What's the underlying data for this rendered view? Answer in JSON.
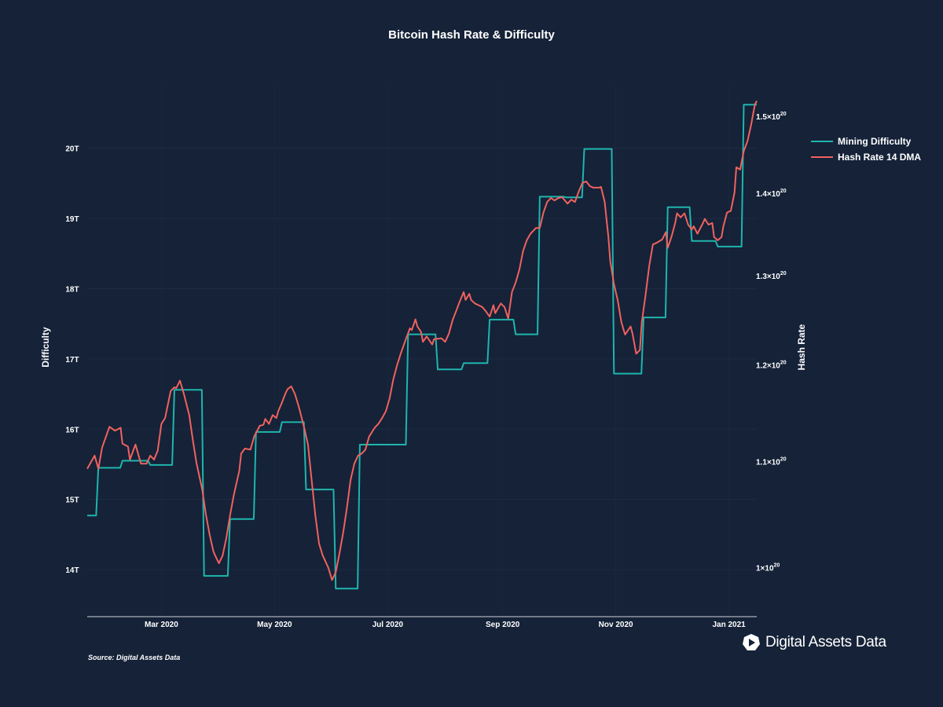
{
  "title": "Bitcoin Hash Rate & Difficulty",
  "source": "Source: Digital Assets Data",
  "logo_text": "Digital Assets Data",
  "colors": {
    "background": "#152238",
    "difficulty": "#1fb5ad",
    "hash_rate": "#f0625f"
  },
  "chart_data": {
    "type": "line",
    "title": "Bitcoin Hash Rate & Difficulty",
    "legend_position": "right",
    "grid": true,
    "x_range": [
      "2020-01-21",
      "2021-01-16"
    ],
    "x_ticks": [
      {
        "date": "2020-03-01",
        "label": "Mar 2020"
      },
      {
        "date": "2020-05-01",
        "label": "May 2020"
      },
      {
        "date": "2020-07-01",
        "label": "Jul 2020"
      },
      {
        "date": "2020-09-01",
        "label": "Sep 2020"
      },
      {
        "date": "2020-11-01",
        "label": "Nov 2020"
      },
      {
        "date": "2021-01-01",
        "label": "Jan 2021"
      }
    ],
    "y_left": {
      "label": "Difficulty",
      "range_T": [
        13.33,
        20.88
      ],
      "ticks": [
        {
          "v": 14,
          "label": "14T"
        },
        {
          "v": 15,
          "label": "15T"
        },
        {
          "v": 16,
          "label": "16T"
        },
        {
          "v": 17,
          "label": "17T"
        },
        {
          "v": 18,
          "label": "18T"
        },
        {
          "v": 19,
          "label": "19T"
        },
        {
          "v": 20,
          "label": "20T"
        }
      ]
    },
    "y_right": {
      "label": "Hash Rate",
      "scale": "log",
      "range": [
        9.57e+19,
        1.541e+20
      ],
      "ticks": [
        {
          "v": 1e+20,
          "mant": "1",
          "exp": "20"
        },
        {
          "v": 1.1e+20,
          "mant": "1.1",
          "exp": "20"
        },
        {
          "v": 1.2e+20,
          "mant": "1.2",
          "exp": "20"
        },
        {
          "v": 1.3e+20,
          "mant": "1.3",
          "exp": "20"
        },
        {
          "v": 1.4e+20,
          "mant": "1.4",
          "exp": "20"
        },
        {
          "v": 1.5e+20,
          "mant": "1.5",
          "exp": "20"
        }
      ]
    },
    "series": [
      {
        "name": "Mining Difficulty",
        "axis": "left",
        "unit": "T",
        "shape": "step",
        "points": [
          [
            "2020-01-21",
            14.77
          ],
          [
            "2020-01-27",
            15.45
          ],
          [
            "2020-02-09",
            15.55
          ],
          [
            "2020-02-24",
            15.49
          ],
          [
            "2020-03-08",
            16.56
          ],
          [
            "2020-03-24",
            13.91
          ],
          [
            "2020-04-07",
            14.72
          ],
          [
            "2020-04-21",
            15.96
          ],
          [
            "2020-05-05",
            16.1
          ],
          [
            "2020-05-18",
            15.14
          ],
          [
            "2020-06-03",
            13.73
          ],
          [
            "2020-06-16",
            15.78
          ],
          [
            "2020-07-12",
            17.35
          ],
          [
            "2020-07-28",
            16.85
          ],
          [
            "2020-08-11",
            16.94
          ],
          [
            "2020-08-25",
            17.56
          ],
          [
            "2020-09-08",
            17.35
          ],
          [
            "2020-09-21",
            19.31
          ],
          [
            "2020-10-05",
            19.3
          ],
          [
            "2020-10-15",
            19.99
          ],
          [
            "2020-10-31",
            16.79
          ],
          [
            "2020-11-16",
            17.59
          ],
          [
            "2020-11-29",
            19.16
          ],
          [
            "2020-12-12",
            18.68
          ],
          [
            "2020-12-26",
            18.6
          ],
          [
            "2021-01-09",
            20.62
          ],
          [
            "2021-01-16",
            20.62
          ]
        ]
      },
      {
        "name": "Hash Rate 14 DMA",
        "axis": "right",
        "unit": "H/s",
        "points": [
          [
            "2020-01-21",
            1.093e+20
          ],
          [
            "2020-01-25",
            1.106e+20
          ],
          [
            "2020-01-27",
            1.093e+20
          ],
          [
            "2020-01-29",
            1.114e+20
          ],
          [
            "2020-02-02",
            1.135e+20
          ],
          [
            "2020-02-05",
            1.131e+20
          ],
          [
            "2020-02-08",
            1.134e+20
          ],
          [
            "2020-02-09",
            1.118e+20
          ],
          [
            "2020-02-12",
            1.115e+20
          ],
          [
            "2020-02-13",
            1.102e+20
          ],
          [
            "2020-02-16",
            1.117e+20
          ],
          [
            "2020-02-19",
            1.098e+20
          ],
          [
            "2020-02-22",
            1.098e+20
          ],
          [
            "2020-02-24",
            1.106e+20
          ],
          [
            "2020-02-26",
            1.102e+20
          ],
          [
            "2020-02-28",
            1.111e+20
          ],
          [
            "2020-03-01",
            1.138e+20
          ],
          [
            "2020-03-03",
            1.144e+20
          ],
          [
            "2020-03-06",
            1.172e+20
          ],
          [
            "2020-03-08",
            1.176e+20
          ],
          [
            "2020-03-09",
            1.175e+20
          ],
          [
            "2020-03-11",
            1.183e+20
          ],
          [
            "2020-03-13",
            1.17e+20
          ],
          [
            "2020-03-16",
            1.147e+20
          ],
          [
            "2020-03-18",
            1.121e+20
          ],
          [
            "2020-03-20",
            1.098e+20
          ],
          [
            "2020-03-23",
            1.073e+20
          ],
          [
            "2020-03-25",
            1.049e+20
          ],
          [
            "2020-03-27",
            1.03e+20
          ],
          [
            "2020-03-29",
            1.015e+20
          ],
          [
            "2020-03-30",
            1.011e+20
          ],
          [
            "2020-04-01",
            1.004e+20
          ],
          [
            "2020-04-03",
            1.011e+20
          ],
          [
            "2020-04-05",
            1.027e+20
          ],
          [
            "2020-04-07",
            1.048e+20
          ],
          [
            "2020-04-09",
            1.067e+20
          ],
          [
            "2020-04-12",
            1.091e+20
          ],
          [
            "2020-04-13",
            1.108e+20
          ],
          [
            "2020-04-15",
            1.113e+20
          ],
          [
            "2020-04-18",
            1.112e+20
          ],
          [
            "2020-04-20",
            1.125e+20
          ],
          [
            "2020-04-23",
            1.136e+20
          ],
          [
            "2020-04-25",
            1.137e+20
          ],
          [
            "2020-04-26",
            1.143e+20
          ],
          [
            "2020-04-28",
            1.138e+20
          ],
          [
            "2020-04-30",
            1.147e+20
          ],
          [
            "2020-05-02",
            1.144e+20
          ],
          [
            "2020-05-03",
            1.151e+20
          ],
          [
            "2020-05-05",
            1.16e+20
          ],
          [
            "2020-05-07",
            1.17e+20
          ],
          [
            "2020-05-08",
            1.174e+20
          ],
          [
            "2020-05-10",
            1.177e+20
          ],
          [
            "2020-05-12",
            1.169e+20
          ],
          [
            "2020-05-14",
            1.156e+20
          ],
          [
            "2020-05-17",
            1.134e+20
          ],
          [
            "2020-05-19",
            1.117e+20
          ],
          [
            "2020-05-21",
            1.082e+20
          ],
          [
            "2020-05-23",
            1.048e+20
          ],
          [
            "2020-05-25",
            1.022e+20
          ],
          [
            "2020-05-27",
            1.011e+20
          ],
          [
            "2020-05-30",
            1e+20
          ],
          [
            "2020-06-01",
            9.89e+19
          ],
          [
            "2020-06-03",
            9.96e+19
          ],
          [
            "2020-06-05",
            1.013e+20
          ],
          [
            "2020-06-07",
            1.032e+20
          ],
          [
            "2020-06-09",
            1.055e+20
          ],
          [
            "2020-06-11",
            1.082e+20
          ],
          [
            "2020-06-13",
            1.098e+20
          ],
          [
            "2020-06-15",
            1.106e+20
          ],
          [
            "2020-06-17",
            1.108e+20
          ],
          [
            "2020-06-19",
            1.112e+20
          ],
          [
            "2020-06-21",
            1.125e+20
          ],
          [
            "2020-06-24",
            1.134e+20
          ],
          [
            "2020-06-26",
            1.138e+20
          ],
          [
            "2020-06-28",
            1.144e+20
          ],
          [
            "2020-06-30",
            1.151e+20
          ],
          [
            "2020-07-02",
            1.164e+20
          ],
          [
            "2020-07-04",
            1.184e+20
          ],
          [
            "2020-07-06",
            1.199e+20
          ],
          [
            "2020-07-08",
            1.212e+20
          ],
          [
            "2020-07-11",
            1.229e+20
          ],
          [
            "2020-07-13",
            1.24e+20
          ],
          [
            "2020-07-14",
            1.238e+20
          ],
          [
            "2020-07-16",
            1.25e+20
          ],
          [
            "2020-07-17",
            1.242e+20
          ],
          [
            "2020-07-19",
            1.236e+20
          ],
          [
            "2020-07-20",
            1.225e+20
          ],
          [
            "2020-07-22",
            1.231e+20
          ],
          [
            "2020-07-25",
            1.222e+20
          ],
          [
            "2020-07-26",
            1.228e+20
          ],
          [
            "2020-07-30",
            1.229e+20
          ],
          [
            "2020-08-01",
            1.225e+20
          ],
          [
            "2020-08-03",
            1.234e+20
          ],
          [
            "2020-08-05",
            1.249e+20
          ],
          [
            "2020-08-07",
            1.26e+20
          ],
          [
            "2020-08-09",
            1.271e+20
          ],
          [
            "2020-08-11",
            1.281e+20
          ],
          [
            "2020-08-12",
            1.272e+20
          ],
          [
            "2020-08-14",
            1.279e+20
          ],
          [
            "2020-08-15",
            1.272e+20
          ],
          [
            "2020-08-17",
            1.268e+20
          ],
          [
            "2020-08-19",
            1.266e+20
          ],
          [
            "2020-08-21",
            1.264e+20
          ],
          [
            "2020-08-23",
            1.259e+20
          ],
          [
            "2020-08-25",
            1.253e+20
          ],
          [
            "2020-08-27",
            1.266e+20
          ],
          [
            "2020-08-28",
            1.257e+20
          ],
          [
            "2020-08-31",
            1.268e+20
          ],
          [
            "2020-09-02",
            1.264e+20
          ],
          [
            "2020-09-04",
            1.251e+20
          ],
          [
            "2020-09-06",
            1.281e+20
          ],
          [
            "2020-09-08",
            1.292e+20
          ],
          [
            "2020-09-10",
            1.307e+20
          ],
          [
            "2020-09-12",
            1.329e+20
          ],
          [
            "2020-09-14",
            1.342e+20
          ],
          [
            "2020-09-16",
            1.35e+20
          ],
          [
            "2020-09-19",
            1.357e+20
          ],
          [
            "2020-09-21",
            1.357e+20
          ],
          [
            "2020-09-23",
            1.376e+20
          ],
          [
            "2020-09-25",
            1.389e+20
          ],
          [
            "2020-09-27",
            1.394e+20
          ],
          [
            "2020-09-29",
            1.391e+20
          ],
          [
            "2020-10-01",
            1.394e+20
          ],
          [
            "2020-10-03",
            1.395e+20
          ],
          [
            "2020-10-06",
            1.387e+20
          ],
          [
            "2020-10-08",
            1.392e+20
          ],
          [
            "2020-10-10",
            1.389e+20
          ],
          [
            "2020-10-12",
            1.402e+20
          ],
          [
            "2020-10-14",
            1.413e+20
          ],
          [
            "2020-10-16",
            1.415e+20
          ],
          [
            "2020-10-18",
            1.409e+20
          ],
          [
            "2020-10-20",
            1.407e+20
          ],
          [
            "2020-10-23",
            1.407e+20
          ],
          [
            "2020-10-24",
            1.408e+20
          ],
          [
            "2020-10-26",
            1.389e+20
          ],
          [
            "2020-10-28",
            1.346e+20
          ],
          [
            "2020-10-29",
            1.317e+20
          ],
          [
            "2020-10-31",
            1.29e+20
          ],
          [
            "2020-11-02",
            1.272e+20
          ],
          [
            "2020-11-04",
            1.247e+20
          ],
          [
            "2020-11-06",
            1.233e+20
          ],
          [
            "2020-11-09",
            1.242e+20
          ],
          [
            "2020-11-10",
            1.234e+20
          ],
          [
            "2020-11-12",
            1.212e+20
          ],
          [
            "2020-11-14",
            1.216e+20
          ],
          [
            "2020-11-15",
            1.247e+20
          ],
          [
            "2020-11-17",
            1.277e+20
          ],
          [
            "2020-11-19",
            1.311e+20
          ],
          [
            "2020-11-21",
            1.337e+20
          ],
          [
            "2020-11-23",
            1.339e+20
          ],
          [
            "2020-11-26",
            1.343e+20
          ],
          [
            "2020-11-28",
            1.352e+20
          ],
          [
            "2020-11-29",
            1.333e+20
          ],
          [
            "2020-12-01",
            1.346e+20
          ],
          [
            "2020-12-03",
            1.363e+20
          ],
          [
            "2020-12-04",
            1.375e+20
          ],
          [
            "2020-12-06",
            1.37e+20
          ],
          [
            "2020-12-08",
            1.375e+20
          ],
          [
            "2020-12-10",
            1.361e+20
          ],
          [
            "2020-12-12",
            1.355e+20
          ],
          [
            "2020-12-13",
            1.359e+20
          ],
          [
            "2020-12-15",
            1.35e+20
          ],
          [
            "2020-12-18",
            1.363e+20
          ],
          [
            "2020-12-19",
            1.368e+20
          ],
          [
            "2020-12-21",
            1.361e+20
          ],
          [
            "2020-12-23",
            1.363e+20
          ],
          [
            "2020-12-24",
            1.346e+20
          ],
          [
            "2020-12-26",
            1.342e+20
          ],
          [
            "2020-12-28",
            1.346e+20
          ],
          [
            "2020-12-29",
            1.359e+20
          ],
          [
            "2020-12-31",
            1.376e+20
          ],
          [
            "2021-01-02",
            1.378e+20
          ],
          [
            "2021-01-04",
            1.401e+20
          ],
          [
            "2021-01-05",
            1.433e+20
          ],
          [
            "2021-01-07",
            1.43e+20
          ],
          [
            "2021-01-09",
            1.454e+20
          ],
          [
            "2021-01-11",
            1.467e+20
          ],
          [
            "2021-01-13",
            1.489e+20
          ],
          [
            "2021-01-15",
            1.516e+20
          ],
          [
            "2021-01-16",
            1.521e+20
          ]
        ]
      }
    ]
  }
}
